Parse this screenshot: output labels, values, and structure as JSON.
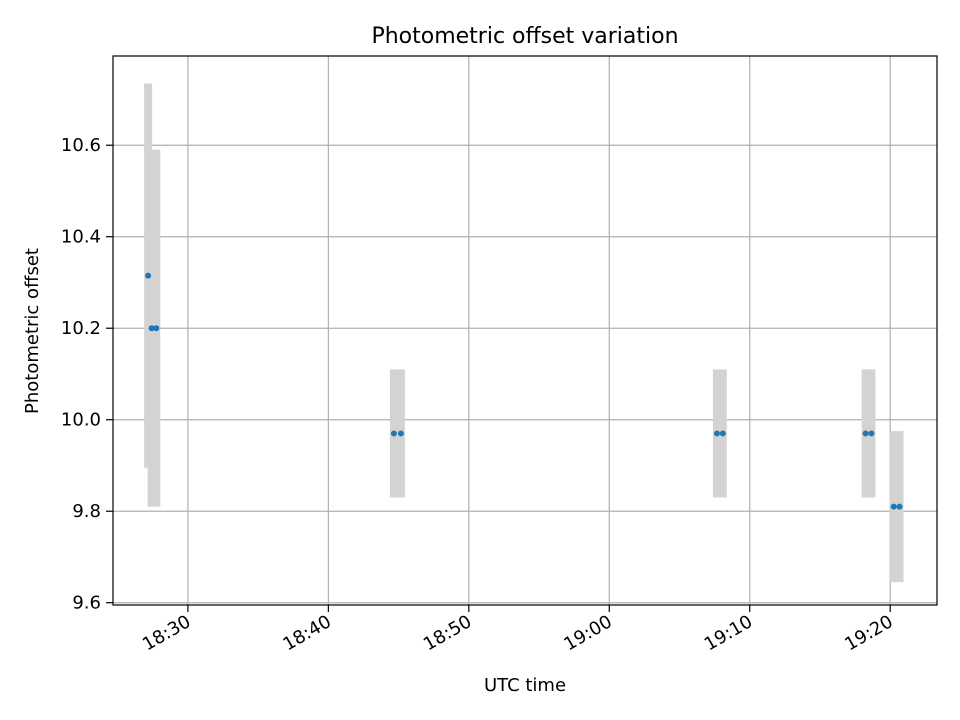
{
  "chart_data": {
    "type": "scatter",
    "title": "Photometric offset variation",
    "xlabel": "UTC time",
    "ylabel": "Photometric offset",
    "x_ticks": [
      "18:30",
      "18:40",
      "18:50",
      "19:00",
      "19:10",
      "19:20"
    ],
    "x_range": [
      "18:24:40",
      "19:23:20"
    ],
    "y_ticks": [
      "9.6",
      "9.8",
      "10.0",
      "10.2",
      "10.4",
      "10.6"
    ],
    "ylim": [
      9.595,
      10.795
    ],
    "grid": true,
    "colors": {
      "points": "#1f77b4",
      "error_bars": "#d3d3d3",
      "grid": "#b0b0b0"
    },
    "points": [
      {
        "time": "18:27:10",
        "offset": 10.315,
        "error": 0.42
      },
      {
        "time": "18:27:25",
        "offset": 10.2,
        "error": 0.39
      },
      {
        "time": "18:27:45",
        "offset": 10.2,
        "error": 0.39
      },
      {
        "time": "18:44:40",
        "offset": 9.97,
        "error": 0.14
      },
      {
        "time": "18:45:10",
        "offset": 9.97,
        "error": 0.14
      },
      {
        "time": "19:07:40",
        "offset": 9.97,
        "error": 0.14
      },
      {
        "time": "19:08:05",
        "offset": 9.97,
        "error": 0.14
      },
      {
        "time": "19:18:15",
        "offset": 9.97,
        "error": 0.14
      },
      {
        "time": "19:18:40",
        "offset": 9.97,
        "error": 0.14
      },
      {
        "time": "19:20:15",
        "offset": 9.81,
        "error": 0.165
      },
      {
        "time": "19:20:40",
        "offset": 9.81,
        "error": 0.165
      }
    ]
  }
}
